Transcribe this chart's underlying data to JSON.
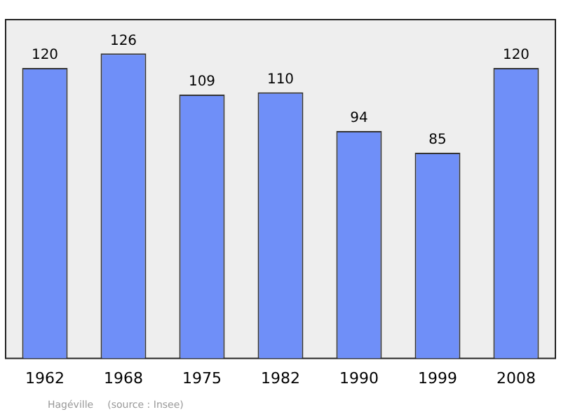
{
  "chart_data": {
    "type": "bar",
    "categories": [
      "1962",
      "1968",
      "1975",
      "1982",
      "1990",
      "1999",
      "2008"
    ],
    "values": [
      120,
      126,
      109,
      110,
      94,
      85,
      120
    ],
    "color": "#6f8ff8",
    "data_labels": true,
    "legend": false,
    "tick_labels": "x",
    "annotations": [
      "Hagéville",
      "(source : Insee)"
    ]
  }
}
